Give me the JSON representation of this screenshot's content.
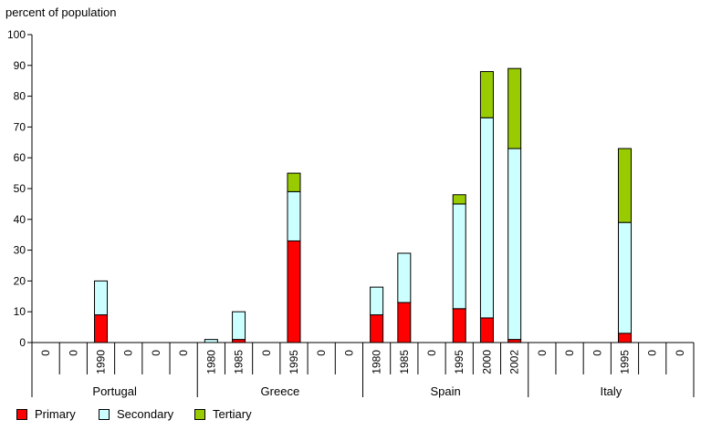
{
  "chart_data": {
    "type": "bar",
    "stacked": true,
    "ylabel": "percent of population",
    "ylim": [
      0,
      100
    ],
    "yticks": [
      0,
      10,
      20,
      30,
      40,
      50,
      60,
      70,
      80,
      90,
      100
    ],
    "groups": [
      {
        "name": "Portugal",
        "labels": [
          "0",
          "0",
          "1990",
          "0",
          "0",
          "0"
        ]
      },
      {
        "name": "Greece",
        "labels": [
          "1980",
          "1985",
          "0",
          "1995",
          "0",
          "0"
        ]
      },
      {
        "name": "Spain",
        "labels": [
          "1980",
          "1985",
          "0",
          "1995",
          "2000",
          "2002"
        ]
      },
      {
        "name": "Italy",
        "labels": [
          "0",
          "0",
          "0",
          "1995",
          "0",
          "0"
        ]
      }
    ],
    "series": [
      {
        "name": "Primary",
        "color": "#ff0000",
        "values": [
          [
            0,
            0,
            9,
            0,
            0,
            0
          ],
          [
            0,
            1,
            0,
            33,
            0,
            0
          ],
          [
            9,
            13,
            0,
            11,
            8,
            1
          ],
          [
            0,
            0,
            0,
            3,
            0,
            0
          ]
        ]
      },
      {
        "name": "Secondary",
        "color": "#ccffff",
        "values": [
          [
            0,
            0,
            11,
            0,
            0,
            0
          ],
          [
            1,
            9,
            0,
            16,
            0,
            0
          ],
          [
            9,
            16,
            0,
            34,
            65,
            62
          ],
          [
            0,
            0,
            0,
            36,
            0,
            0
          ]
        ]
      },
      {
        "name": "Tertiary",
        "color": "#99cc00",
        "values": [
          [
            0,
            0,
            0,
            0,
            0,
            0
          ],
          [
            0,
            0,
            0,
            6,
            0,
            0
          ],
          [
            0,
            0,
            0,
            3,
            15,
            26
          ],
          [
            0,
            0,
            0,
            24,
            0,
            0
          ]
        ]
      }
    ]
  }
}
